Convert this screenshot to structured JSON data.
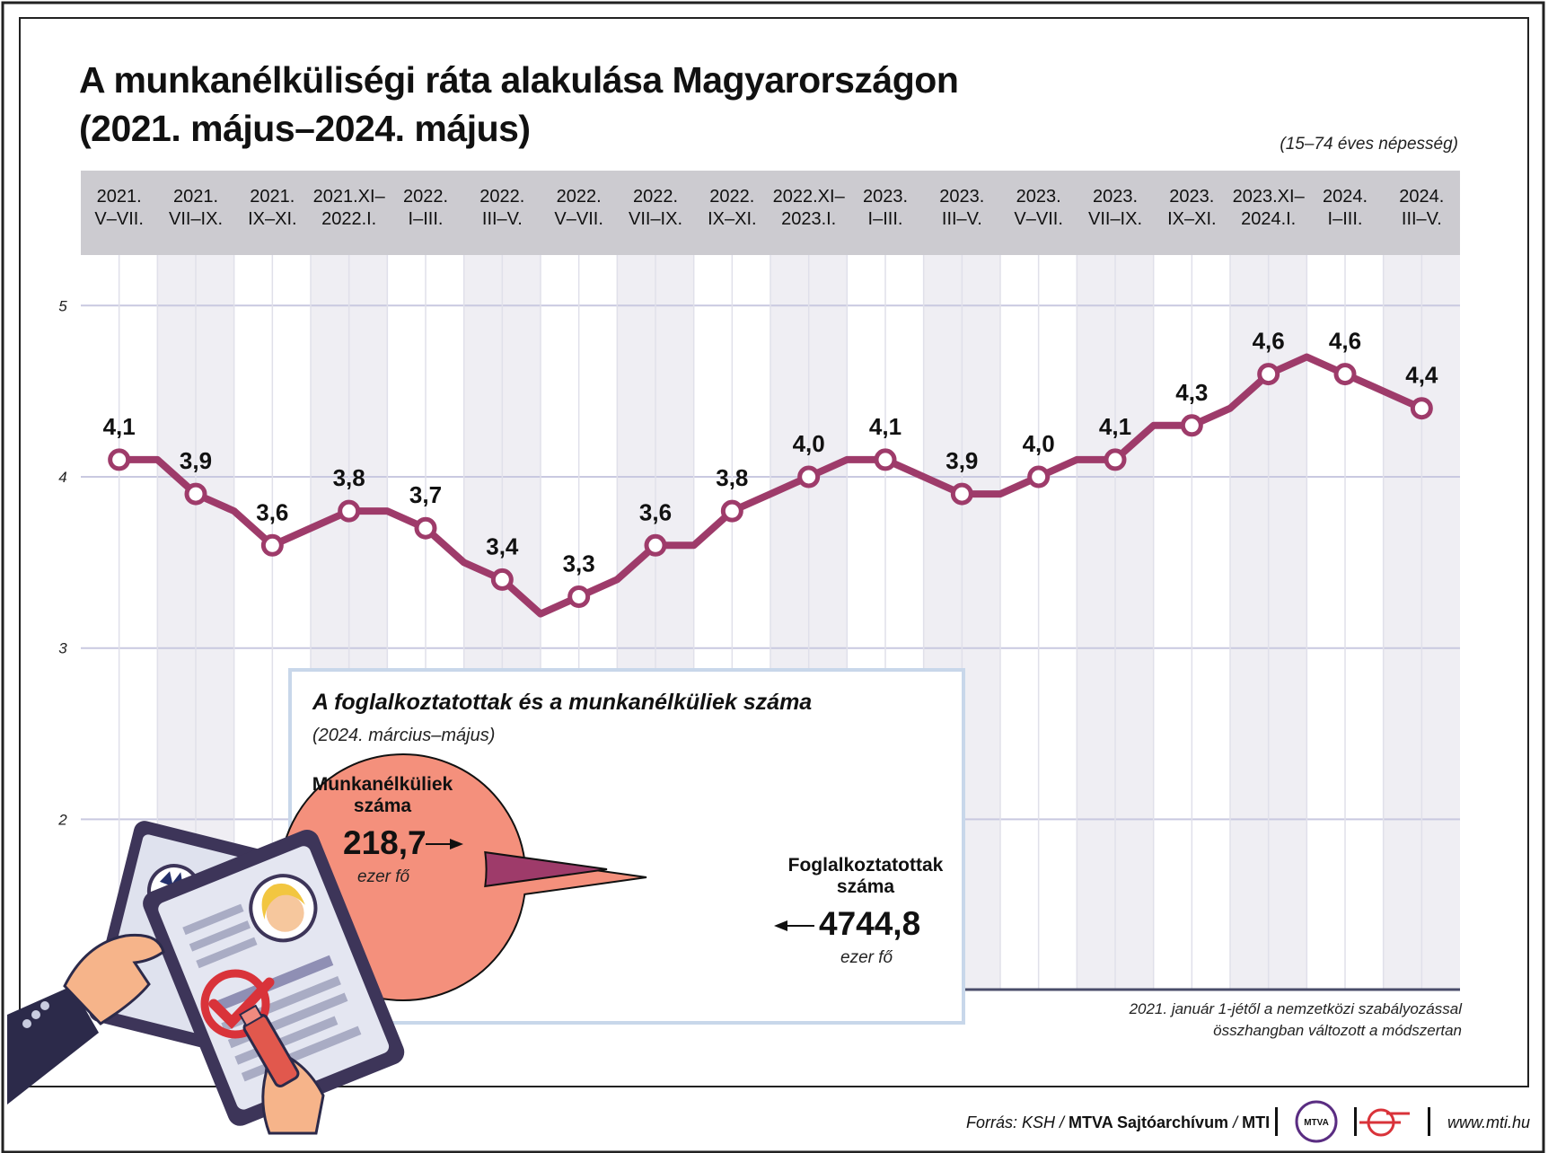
{
  "title_line1": "A munkanélküliségi ráta alakulása Magyarországon",
  "title_line2": "(2021. május–2024. május)",
  "subtitle": "(15–74 éves népesség)",
  "chart_data": [
    {
      "type": "line",
      "categories": [
        "2021.\nV–VII.",
        "2021.\nVII–IX.",
        "2021.\nIX–XI.",
        "2021.XI–\n2022.I.",
        "2022.\nI–III.",
        "2022.\nIII–V.",
        "2022.\nV–VII.",
        "2022.\nVII–IX.",
        "2022.\nIX–XI.",
        "2022.XI–\n2023.I.",
        "2023.\nI–III.",
        "2023.\nIII–V.",
        "2023.\nV–VII.",
        "2023.\nVII–IX.",
        "2023.\nIX–XI.",
        "2023.XI–\n2024.I.",
        "2024.\nI–III.",
        "2024.\nIII–V."
      ],
      "labeled_values": [
        4.1,
        3.9,
        3.6,
        3.8,
        3.7,
        3.4,
        3.3,
        3.6,
        3.8,
        4.0,
        4.1,
        3.9,
        4.0,
        4.1,
        4.3,
        4.6,
        4.6,
        4.4
      ],
      "value_labels": [
        "4,1",
        "3,9",
        "3,6",
        "3,8",
        "3,7",
        "3,4",
        "3,3",
        "3,6",
        "3,8",
        "4,0",
        "4,1",
        "3,9",
        "4,0",
        "4,1",
        "4,3",
        "4,6",
        "4,6",
        "4,4"
      ],
      "monthly_values": [
        4.1,
        4.1,
        3.9,
        3.8,
        3.6,
        3.7,
        3.8,
        3.8,
        3.7,
        3.5,
        3.4,
        3.2,
        3.3,
        3.4,
        3.6,
        3.6,
        3.8,
        3.9,
        4.0,
        4.1,
        4.1,
        4.0,
        3.9,
        3.9,
        4.0,
        4.1,
        4.1,
        4.3,
        4.3,
        4.4,
        4.6,
        4.7,
        4.6,
        4.5,
        4.4
      ],
      "y_ticks": [
        "2",
        "3",
        "4",
        "5"
      ],
      "ylim": [
        1,
        5.3
      ],
      "grid": true,
      "color": "#9e3b6a"
    },
    {
      "type": "pie",
      "title": "A foglalkoztatottak és a munkanélküliek száma",
      "subtitle": "(2024. március–május)",
      "slices": [
        {
          "name": "Munkanélküliek\nszáma",
          "value": 218.7,
          "value_label": "218,7",
          "unit": "ezer fő",
          "color": "#9e3b6a"
        },
        {
          "name": "Foglalkoztatottak\nszáma",
          "value": 4744.8,
          "value_label": "4744,8",
          "unit": "ezer fő",
          "color": "#f4907c"
        }
      ]
    }
  ],
  "footnote_line1": "2021. január 1-jétől a nemzetközi szabályozással",
  "footnote_line2": "összhangban változott a módszertan",
  "source_prefix": "Forrás: KSH / ",
  "source_bold": "MTVA Sajtóarchívum",
  "source_sep": " / ",
  "source_mti": "MTI",
  "logo_text": "MTVA",
  "url": "www.mti.hu"
}
